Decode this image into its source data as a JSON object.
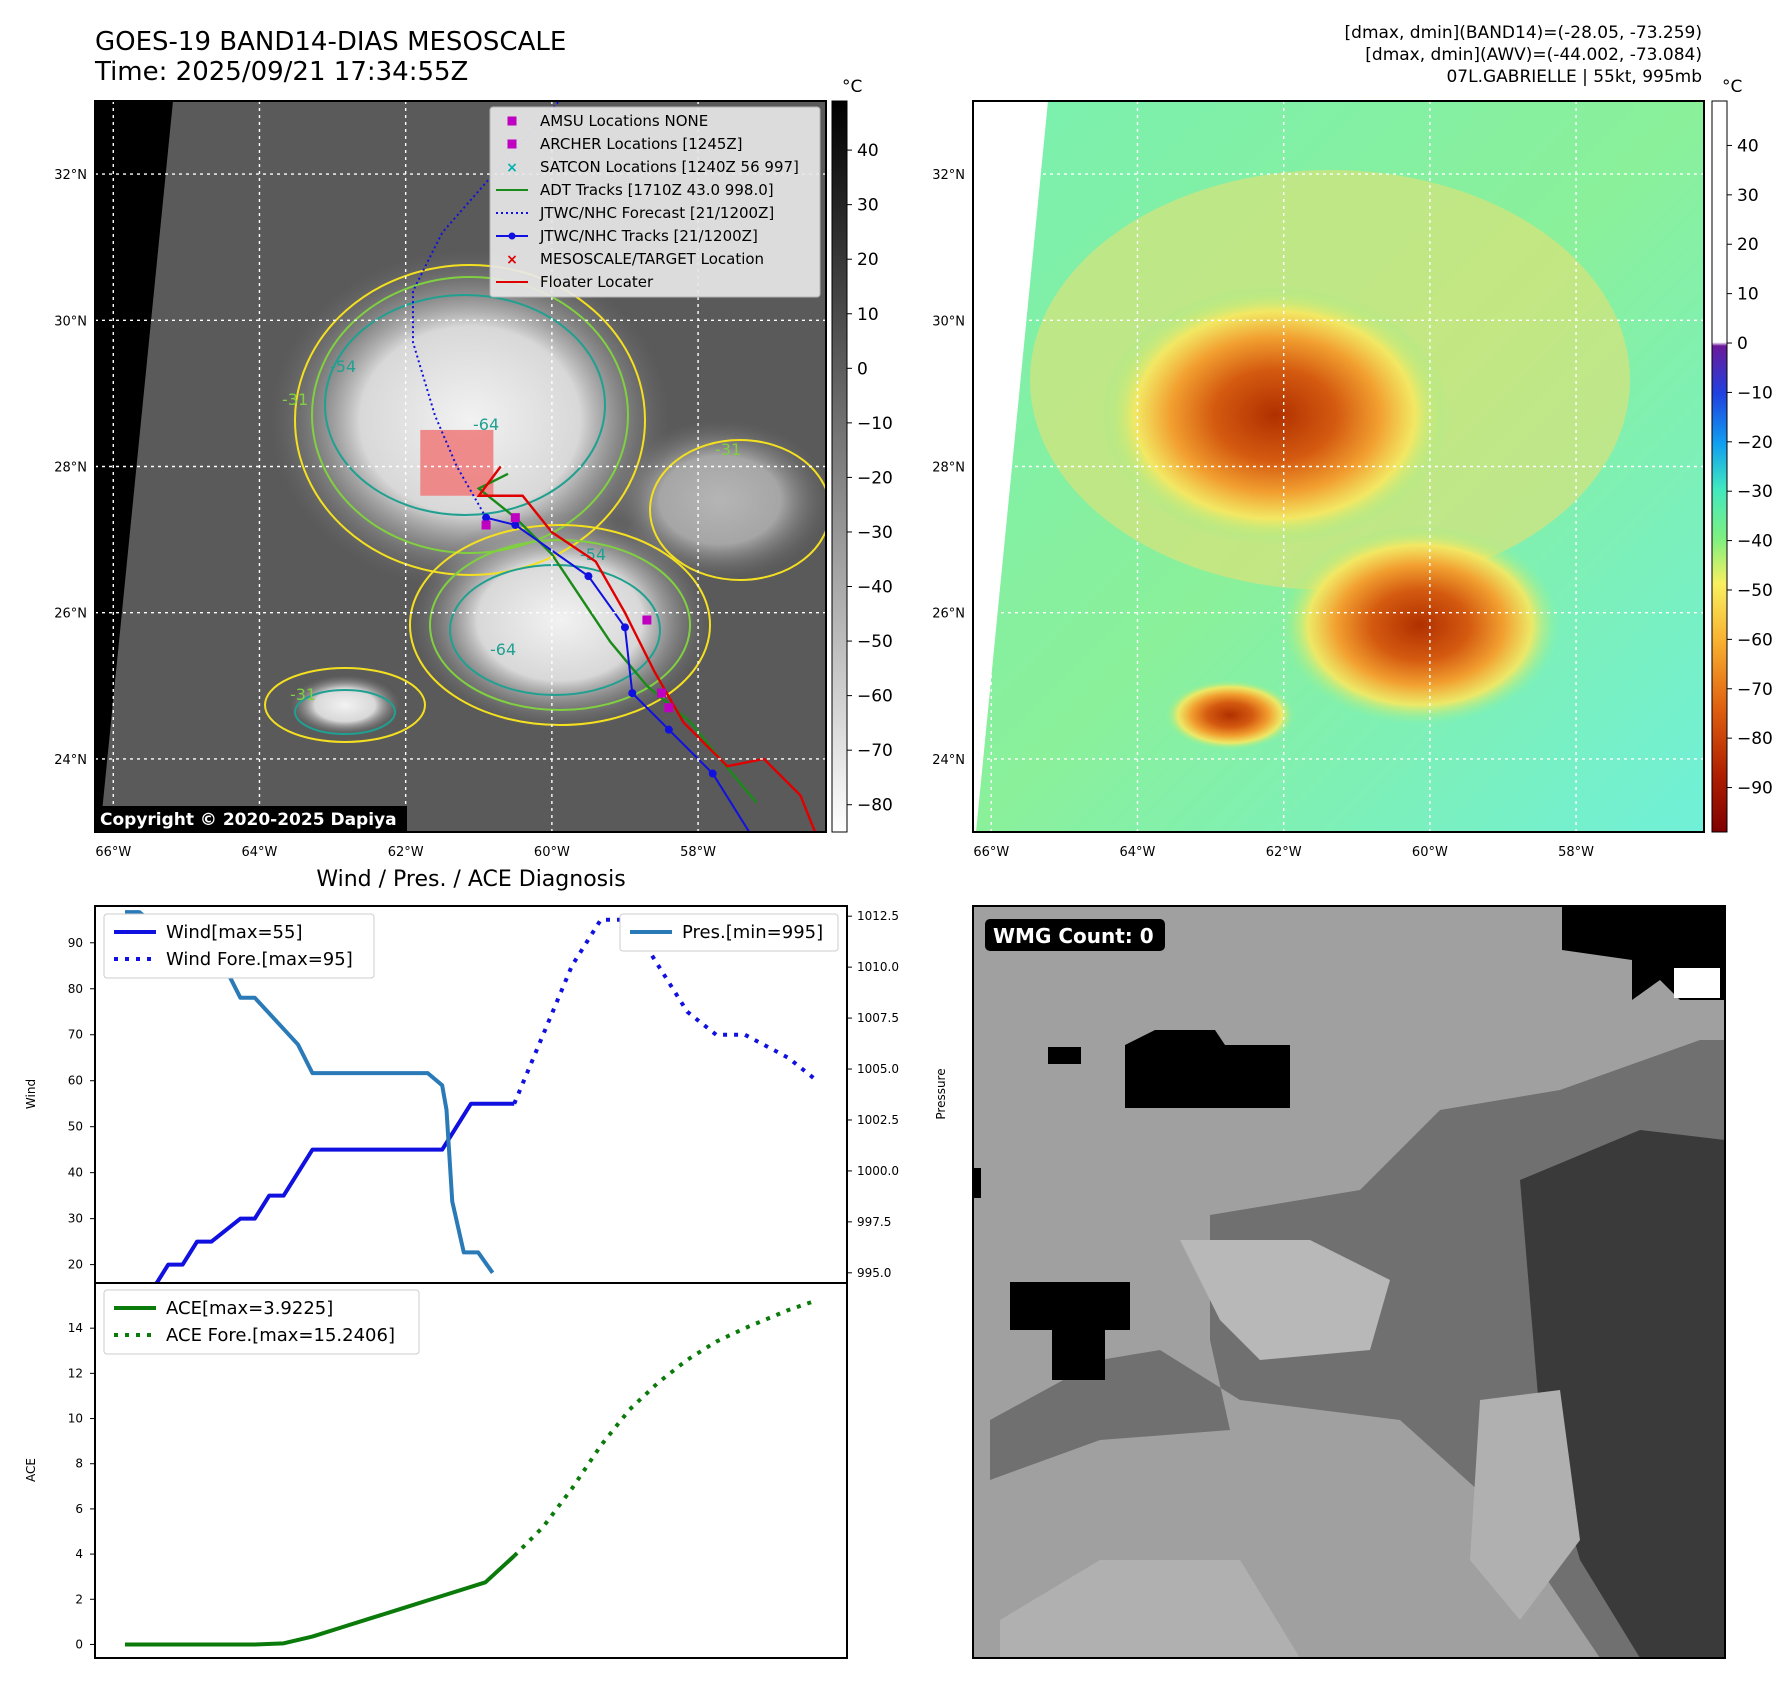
{
  "header": {
    "title": "GOES-19 BAND14-DIAS MESOSCALE",
    "time": "Time: 2025/09/21 17:34:55Z",
    "stats_band14": "[dmax, dmin](BAND14)=(-28.05, -73.259)",
    "stats_awv": "[dmax, dmin](AWV)=(-44.002, -73.084)",
    "storm": "07L.GABRIELLE | 55kt, 995mb"
  },
  "map": {
    "lon_ticks": [
      "66°W",
      "64°W",
      "62°W",
      "60°W",
      "58°W"
    ],
    "lat_ticks": [
      "32°N",
      "30°N",
      "28°N",
      "26°N",
      "24°N"
    ],
    "lon_range": [
      -66.25,
      -56.25
    ],
    "lat_range": [
      23.0,
      33.0
    ],
    "copyright": "Copyright © 2020-2025 Dapiya",
    "contour_labels": [
      "-54",
      "-31",
      "-64",
      "-54",
      "-31",
      "-64",
      "-31"
    ],
    "colorbar_unit": "°C",
    "gray_colorbar_ticks": [
      40,
      30,
      20,
      10,
      0,
      -10,
      -20,
      -30,
      -40,
      -50,
      -60,
      -70,
      -80
    ],
    "gray_colorbar_range": [
      -85,
      49
    ],
    "color_colorbar_ticks": [
      40,
      30,
      20,
      10,
      0,
      -10,
      -20,
      -30,
      -40,
      -50,
      -60,
      -70,
      -80,
      -90
    ],
    "color_colorbar_range": [
      -99,
      49
    ],
    "legend": [
      {
        "label": "AMSU Locations NONE",
        "color": "#c000c0",
        "marker": "square"
      },
      {
        "label": "ARCHER Locations [1245Z]",
        "color": "#c000c0",
        "marker": "square"
      },
      {
        "label": "SATCON Locations [1240Z 56 997]",
        "color": "#00b0b0",
        "marker": "x"
      },
      {
        "label": "ADT Tracks [1710Z 43.0 998.0]",
        "color": "#1a8a1a",
        "marker": "line"
      },
      {
        "label": "JTWC/NHC Forecast [21/1200Z]",
        "color": "#1010e0",
        "marker": "dotted"
      },
      {
        "label": "JTWC/NHC Tracks [21/1200Z]",
        "color": "#1010e0",
        "marker": "line-dot"
      },
      {
        "label": "MESOSCALE/TARGET Location",
        "color": "#e00000",
        "marker": "x"
      },
      {
        "label": "Floater Locater",
        "color": "#e00000",
        "marker": "line"
      }
    ],
    "jtwc_track": [
      [
        -57.3,
        23.0
      ],
      [
        -57.8,
        23.8
      ],
      [
        -58.4,
        24.4
      ],
      [
        -58.9,
        24.9
      ],
      [
        -59.0,
        25.8
      ],
      [
        -59.5,
        26.5
      ],
      [
        -60.5,
        27.2
      ],
      [
        -60.9,
        27.3
      ]
    ],
    "jtwc_forecast": [
      [
        -60.9,
        27.3
      ],
      [
        -61.3,
        28.0
      ],
      [
        -61.6,
        28.7
      ],
      [
        -61.9,
        29.7
      ],
      [
        -61.9,
        30.4
      ],
      [
        -61.5,
        31.2
      ],
      [
        -60.8,
        32.0
      ],
      [
        -59.9,
        33.0
      ]
    ],
    "archer_points": [
      [
        -60.9,
        27.2
      ],
      [
        -60.5,
        27.3
      ],
      [
        -58.7,
        25.9
      ],
      [
        -58.5,
        24.9
      ],
      [
        -58.4,
        24.7
      ]
    ],
    "floater_path": [
      [
        -56.4,
        23.0
      ],
      [
        -56.6,
        23.5
      ],
      [
        -57.1,
        24.0
      ],
      [
        -57.6,
        23.9
      ],
      [
        -58.2,
        24.5
      ],
      [
        -58.6,
        25.2
      ],
      [
        -59.0,
        26.0
      ],
      [
        -59.4,
        26.7
      ],
      [
        -60.0,
        27.1
      ],
      [
        -60.4,
        27.6
      ],
      [
        -61.0,
        27.6
      ],
      [
        -60.7,
        28.0
      ]
    ],
    "adt_path": [
      [
        -57.2,
        23.4
      ],
      [
        -57.7,
        24.0
      ],
      [
        -58.1,
        24.5
      ],
      [
        -58.7,
        25.0
      ],
      [
        -59.2,
        25.6
      ],
      [
        -59.6,
        26.2
      ],
      [
        -60.0,
        26.8
      ],
      [
        -60.5,
        27.3
      ],
      [
        -61.0,
        27.7
      ],
      [
        -60.6,
        27.9
      ]
    ],
    "target_box": {
      "lon": [
        -61.8,
        -60.8
      ],
      "lat": [
        27.6,
        28.5
      ]
    }
  },
  "wmg": {
    "label": "WMG Count: 0"
  },
  "chart_data": [
    {
      "type": "line",
      "title": "Wind / Pres. / ACE Diagnosis",
      "xlabel": "",
      "ylabel": "Wind",
      "y2label": "Pressure",
      "ylim": [
        16,
        98
      ],
      "y2lim": [
        994.5,
        1013
      ],
      "yticks": [
        20,
        30,
        40,
        50,
        60,
        70,
        80,
        90
      ],
      "y2ticks": [
        "995.0",
        "997.5",
        "1000.0",
        "1002.5",
        "1005.0",
        "1007.5",
        "1010.0",
        "1012.5"
      ],
      "series": [
        {
          "name": "Wind[max=55]",
          "axis": "left",
          "style": "solid",
          "color": "#1010e0",
          "x": [
            0,
            2,
            3,
            4,
            5,
            6,
            8,
            9,
            10,
            11,
            12,
            13,
            14,
            15,
            22,
            23,
            24,
            26,
            27
          ],
          "y": [
            15,
            15,
            20,
            20,
            25,
            25,
            30,
            30,
            35,
            35,
            40,
            45,
            45,
            45,
            45,
            50,
            55,
            55,
            55
          ]
        },
        {
          "name": "Wind Fore.[max=95]",
          "axis": "left",
          "style": "dotted",
          "color": "#1010e0",
          "x": [
            27,
            29,
            31,
            33,
            35,
            37,
            39,
            41,
            43,
            46,
            48
          ],
          "y": [
            55,
            70,
            85,
            95,
            95,
            85,
            75,
            70,
            70,
            65,
            60
          ]
        },
        {
          "name": "Pres.[min=995]",
          "axis": "right",
          "style": "solid",
          "color": "#2a7ab8",
          "x": [
            0,
            1,
            2,
            3,
            5,
            7,
            8,
            9,
            12,
            13,
            15,
            16,
            21,
            22,
            22.3,
            22.7,
            23.5,
            24.5,
            25.5
          ],
          "y": [
            1012.7,
            1012.7,
            1012.1,
            1012.1,
            1011.1,
            1009.9,
            1008.5,
            1008.5,
            1006.2,
            1004.8,
            1004.8,
            1004.8,
            1004.8,
            1004.2,
            1003.0,
            998.5,
            996.0,
            996.0,
            995.0
          ]
        }
      ]
    },
    {
      "type": "line",
      "xlabel": "",
      "ylabel": "ACE",
      "ylim": [
        -0.6,
        16
      ],
      "yticks": [
        0,
        2,
        4,
        6,
        8,
        10,
        12,
        14
      ],
      "series": [
        {
          "name": "ACE[max=3.9225]",
          "style": "solid",
          "color": "#0a7a0a",
          "x": [
            0,
            4,
            5,
            7,
            9,
            11,
            13,
            15,
            17,
            19,
            21,
            23,
            25,
            27
          ],
          "y": [
            0,
            0,
            0,
            0,
            0,
            0.05,
            0.35,
            0.75,
            1.15,
            1.55,
            1.95,
            2.35,
            2.75,
            3.92
          ]
        },
        {
          "name": "ACE Fore.[max=15.2406]",
          "style": "dotted",
          "color": "#0a7a0a",
          "x": [
            27,
            29,
            31,
            33,
            35,
            37,
            39,
            41,
            43,
            46,
            48
          ],
          "y": [
            3.92,
            5.2,
            6.9,
            8.8,
            10.4,
            11.6,
            12.6,
            13.4,
            14.0,
            14.8,
            15.24
          ]
        }
      ]
    }
  ]
}
